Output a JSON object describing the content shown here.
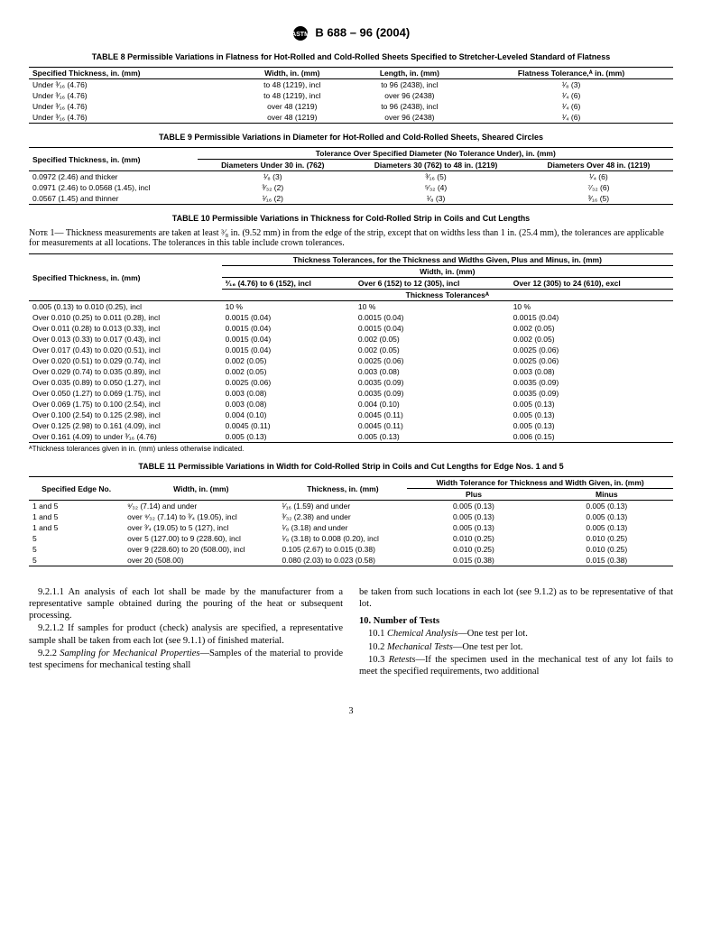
{
  "doc_header": "B 688 – 96  (2004)",
  "table8": {
    "title": "TABLE 8  Permissible Variations in Flatness for Hot-Rolled and Cold-Rolled Sheets Specified to Stretcher-Leveled Standard of Flatness",
    "headers": [
      "Specified Thickness, in. (mm)",
      "Width, in. (mm)",
      "Length, in. (mm)",
      "Flatness Tolerance,ᴬ in. (mm)"
    ],
    "rows": [
      [
        "Under ³⁄₁₆ (4.76)",
        "to 48 (1219), incl",
        "to 96 (2438), incl",
        "¹⁄₈  (3)"
      ],
      [
        "Under ³⁄₁₆  (4.76)",
        "to 48 (1219), incl",
        "over 96 (2438)",
        "¹⁄₄  (6)"
      ],
      [
        "Under ³⁄₁₆  (4.76)",
        "over 48 (1219)",
        "to 96 (2438), incl",
        "¹⁄₄  (6)"
      ],
      [
        "Under ³⁄₁₆  (4.76)",
        "over 48 (1219)",
        "over 96 (2438)",
        "¹⁄₄  (6)"
      ]
    ]
  },
  "table9": {
    "title": "TABLE 9  Permissible Variations in Diameter for Hot-Rolled and Cold-Rolled Sheets, Sheared Circles",
    "col1_header": "Specified Thickness, in. (mm)",
    "span_header": "Tolerance Over Specified Diameter (No Tolerance Under), in. (mm)",
    "sub_headers": [
      "Diameters Under 30 in. (762)",
      "Diameters 30 (762) to 48 in. (1219)",
      "Diameters Over 48 in. (1219)"
    ],
    "rows": [
      [
        "0.0972 (2.46) and thicker",
        "¹⁄₈ (3)",
        "³⁄₁₆ (5)",
        "¹⁄₄ (6)"
      ],
      [
        "0.0971 (2.46) to 0.0568 (1.45), incl",
        "³⁄₃₂  (2)",
        "⁵⁄₃₂  (4)",
        "⁷⁄₃₂  (6)"
      ],
      [
        "0.0567 (1.45) and thinner",
        "¹⁄₁₆  (2)",
        "¹⁄₈  (3)",
        "³⁄₁₆  (5)"
      ]
    ]
  },
  "table10": {
    "title": "TABLE 10  Permissible Variations in Thickness for Cold-Rolled Strip in Coils and Cut Lengths",
    "note": "Nᴏᴛᴇ  1— Thickness measurements are taken at least ³⁄₈ in. (9.52 mm) in from the edge of the strip, except that on widths less than 1 in. (25.4 mm), the tolerances are applicable for measurements at all locations. The tolerances in this table include crown tolerances.",
    "col1_header": "Specified Thickness, in. (mm)",
    "span_header": "Thickness Tolerances, for the Thickness and Widths Given, Plus and Minus, in. (mm)",
    "width_header": "Width, in. (mm)",
    "width_cols": [
      "³⁄₁₆ (4.76) to 6 (152), incl",
      "Over 6 (152) to 12 (305), incl",
      "Over 12 (305) to 24 (610), excl"
    ],
    "tol_header": "Thickness Tolerancesᴬ",
    "rows": [
      [
        "0.005 (0.13) to 0.010 (0.25), incl",
        "10 %",
        "10 %",
        "10 %"
      ],
      [
        "Over 0.010 (0.25) to 0.011 (0.28), incl",
        "0.0015 (0.04)",
        "0.0015 (0.04)",
        "0.0015 (0.04)"
      ],
      [
        "Over 0.011 (0.28) to 0.013 (0.33), incl",
        "0.0015 (0.04)",
        "0.0015 (0.04)",
        "0.002 (0.05)"
      ],
      [
        "Over 0.013 (0.33) to 0.017 (0.43), incl",
        "0.0015 (0.04)",
        "0.002 (0.05)",
        "0.002 (0.05)"
      ],
      [
        "Over 0.017 (0.43) to 0.020 (0.51), incl",
        "0.0015 (0.04)",
        "0.002 (0.05)",
        "0.0025 (0.06)"
      ],
      [
        "Over 0.020 (0.51) to 0.029 (0.74), incl",
        "0.002 (0.05)",
        "0.0025 (0.06)",
        "0.0025 (0.06)"
      ],
      [
        "Over 0.029 (0.74) to 0.035 (0.89), incl",
        "0.002 (0.05)",
        "0.003 (0.08)",
        "0.003 (0.08)"
      ],
      [
        "Over 0.035 (0.89) to 0.050 (1.27), incl",
        "0.0025 (0.06)",
        "0.0035 (0.09)",
        "0.0035 (0.09)"
      ],
      [
        "Over 0.050 (1.27) to 0.069 (1.75), incl",
        "0.003 (0.08)",
        "0.0035 (0.09)",
        "0.0035 (0.09)"
      ],
      [
        "Over 0.069 (1.75) to 0.100 (2.54), incl",
        "0.003 (0.08)",
        "0.004 (0.10)",
        "0.005 (0.13)"
      ],
      [
        "Over 0.100 (2.54) to 0.125 (2.98), incl",
        "0.004 (0.10)",
        "0.0045 (0.11)",
        "0.005 (0.13)"
      ],
      [
        "Over 0.125 (2.98) to 0.161 (4.09), incl",
        "0.0045 (0.11)",
        "0.0045 (0.11)",
        "0.005 (0.13)"
      ],
      [
        "Over 0.161 (4.09) to under ³⁄₁₆ (4.76)",
        "0.005 (0.13)",
        "0.005 (0.13)",
        "0.006 (0.15)"
      ]
    ],
    "footnote": "ᴬThickness tolerances given in in. (mm) unless otherwise indicated."
  },
  "table11": {
    "title": "TABLE 11  Permissible Variations in Width for Cold-Rolled Strip in Coils and Cut Lengths for Edge Nos. 1 and 5",
    "headers": [
      "Specified Edge No.",
      "Width, in. (mm)",
      "Thickness, in. (mm)"
    ],
    "span_header": "Width Tolerance for Thickness and Width Given, in. (mm)",
    "sub_headers": [
      "Plus",
      "Minus"
    ],
    "rows": [
      [
        "1 and 5",
        "⁹⁄₃₂ (7.14) and under",
        "¹⁄₁₆ (1.59) and under",
        "0.005 (0.13)",
        "0.005 (0.13)"
      ],
      [
        "1 and 5",
        "over ⁹⁄₃₂ (7.14) to ³⁄₄ (19.05), incl",
        "³⁄₃₂ (2.38) and under",
        "0.005 (0.13)",
        "0.005 (0.13)"
      ],
      [
        "1 and 5",
        "over ³⁄₄ (19.05) to 5 (127), incl",
        "¹⁄₈ (3.18) and under",
        "0.005 (0.13)",
        "0.005 (0.13)"
      ],
      [
        "5",
        "over 5 (127.00) to 9 (228.60), incl",
        "¹⁄₈ (3.18) to 0.008 (0.20), incl",
        "0.010 (0.25)",
        "0.010 (0.25)"
      ],
      [
        "5",
        "over 9 (228.60) to 20 (508.00), incl",
        "0.105 (2.67) to 0.015 (0.38)",
        "0.010 (0.25)",
        "0.010 (0.25)"
      ],
      [
        "5",
        "over 20 (508.00)",
        "0.080 (2.03) to 0.023 (0.58)",
        "0.015 (0.38)",
        "0.015 (0.38)"
      ]
    ]
  },
  "body": {
    "p1": "9.2.1.1 An analysis of each lot shall be made by the manufacturer from a representative sample obtained during the pouring of the heat or subsequent processing.",
    "p2": "9.2.1.2 If samples for product (check) analysis are specified, a representative sample shall be taken from each lot (see 9.1.1) of finished material.",
    "p3a": "9.2.2 ",
    "p3b": "Sampling for Mechanical Properties",
    "p3c": "—Samples of the material to provide test specimens for mechanical testing shall",
    "p4": "be taken from such locations in each lot (see 9.1.2) as to be representative of that lot.",
    "h10": "10.  Number of Tests",
    "p5a": "10.1 ",
    "p5b": "Chemical Analysis",
    "p5c": "—One test per lot.",
    "p6a": "10.2 ",
    "p6b": "Mechanical Tests",
    "p6c": "—One test per lot.",
    "p7a": "10.3 ",
    "p7b": "Retests",
    "p7c": "—If the specimen used in the mechanical test of any lot fails to meet the specified requirements, two additional"
  },
  "page_number": "3"
}
